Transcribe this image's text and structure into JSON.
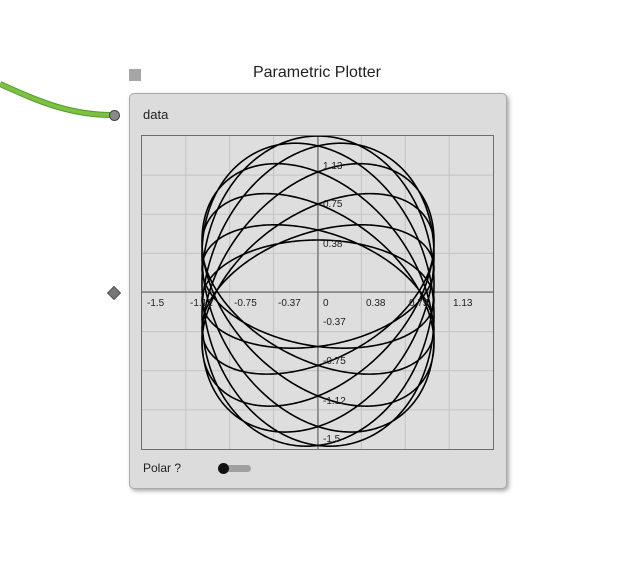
{
  "node": {
    "title": "Parametric Plotter",
    "input_port": "data",
    "polar_label": "Polar ?",
    "polar_enabled": false
  },
  "colors": {
    "wire": "#7cc242",
    "node_bg": "#dcdcdc",
    "plot_bg": "#dedede",
    "curve": "#000000"
  },
  "icons": {
    "node_icon": "square-icon",
    "input": "input-port-dot-icon",
    "side": "diamond-handle-icon"
  },
  "chart_data": {
    "type": "line",
    "title": "",
    "xlabel": "",
    "ylabel": "",
    "xlim": [
      -1.5,
      1.5
    ],
    "ylim": [
      -1.5,
      1.5
    ],
    "grid": true,
    "x_ticks": [
      "-1.5",
      "-1.12",
      "-0.75",
      "-0.37",
      "0",
      "0.38",
      "0.75",
      "1.13"
    ],
    "y_ticks_pos": [
      "1.13",
      "0.75",
      "0.38"
    ],
    "y_ticks_neg": [
      "-0.37",
      "-0.75",
      "-1.12",
      "-1.5"
    ],
    "curve": {
      "equation": "x = sin(t), y = cos(t) + 0.5*cos(9t/10)",
      "x_extent": [
        -1.0,
        1.0
      ],
      "y_extent": [
        -1.47,
        1.47
      ]
    }
  }
}
